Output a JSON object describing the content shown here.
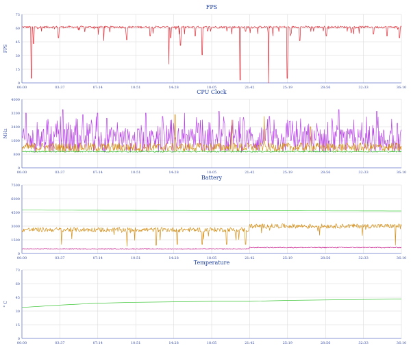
{
  "chart_data": [
    {
      "type": "line",
      "title": "FPS",
      "ylabel": "FPS",
      "ylim": [
        0,
        73
      ],
      "yticks": [
        "0",
        "15",
        "30",
        "45",
        "60",
        "73"
      ],
      "xticks": [
        "00:00",
        "03:37",
        "07:14",
        "10:51",
        "14:28",
        "18:05",
        "21:42",
        "25:19",
        "28:56",
        "32:33",
        "36:10"
      ],
      "xlim_minutes": [
        0,
        36.17
      ],
      "series": [
        {
          "color": "#e0303a",
          "baseline": 59.5,
          "noise": 1.2,
          "dips": [
            [
              0.9,
              5
            ],
            [
              1.1,
              42
            ],
            [
              3.5,
              48
            ],
            [
              7.8,
              45
            ],
            [
              10.0,
              46
            ],
            [
              12.2,
              50
            ],
            [
              14.0,
              20
            ],
            [
              14.2,
              48
            ],
            [
              15.1,
              40
            ],
            [
              15.5,
              52
            ],
            [
              16.5,
              50
            ],
            [
              17.2,
              30
            ],
            [
              18.0,
              55
            ],
            [
              20.0,
              52
            ],
            [
              20.8,
              3
            ],
            [
              21.3,
              55
            ],
            [
              23.5,
              0
            ],
            [
              23.9,
              50
            ],
            [
              25.3,
              5
            ],
            [
              25.6,
              50
            ],
            [
              26.5,
              45
            ],
            [
              27.8,
              55
            ],
            [
              29.0,
              50
            ],
            [
              31.0,
              55
            ],
            [
              33.5,
              52
            ],
            [
              34.8,
              50
            ],
            [
              36.0,
              48
            ]
          ]
        }
      ]
    },
    {
      "type": "line",
      "title": "CPU Clock",
      "ylabel": "MHz",
      "ylim": [
        0,
        4000
      ],
      "yticks": [
        "0",
        "800",
        "1600",
        "2400",
        "3200",
        "4000"
      ],
      "xticks": [
        "00:00",
        "03:37",
        "07:14",
        "10:51",
        "14:28",
        "18:05",
        "21:42",
        "25:19",
        "28:56",
        "32:33",
        "36:10"
      ],
      "xlim_minutes": [
        0,
        36.17
      ],
      "series": [
        {
          "color": "#b844e8",
          "baseline": 1600,
          "noise": 700,
          "peaks": [
            [
              0.4,
              3200
            ],
            [
              3.9,
              3400
            ],
            [
              5.8,
              3100
            ],
            [
              7.2,
              3200
            ],
            [
              8.1,
              2900
            ],
            [
              11.8,
              3200
            ],
            [
              13.4,
              3000
            ],
            [
              15.5,
              3200
            ],
            [
              18.8,
              3300
            ],
            [
              20.1,
              2800
            ],
            [
              23.6,
              3000
            ],
            [
              25.5,
              2700
            ],
            [
              30.2,
              3400
            ],
            [
              33.8,
              3300
            ],
            [
              35.8,
              2600
            ]
          ]
        },
        {
          "color": "#d48f1a",
          "baseline": 1200,
          "noise": 260,
          "peaks": [
            [
              14.6,
              3100
            ],
            [
              20.0,
              2800
            ],
            [
              23.1,
              3000
            ],
            [
              27.5,
              2400
            ]
          ]
        },
        {
          "color": "#22b51c",
          "baseline": 950,
          "noise": 40
        }
      ]
    },
    {
      "type": "line",
      "title": "Battery",
      "ylabel": "",
      "ylim": [
        0,
        7500
      ],
      "yticks": [
        "0",
        "1500",
        "3000",
        "4500",
        "6000",
        "7500"
      ],
      "xticks": [
        "00:00",
        "03:37",
        "07:14",
        "10:51",
        "14:28",
        "18:05",
        "21:42",
        "25:19",
        "28:56",
        "32:33",
        "36:10"
      ],
      "xlim_minutes": [
        0,
        36.17
      ],
      "series": [
        {
          "color": "#3fcf3c",
          "values_start_end": [
            4750,
            4650
          ]
        },
        {
          "color": "#d4901a",
          "baseline": 2600,
          "baseline_after_21_7": 3000,
          "noise": 250,
          "dips": [
            [
              3.8,
              1000
            ],
            [
              10.0,
              800
            ],
            [
              12.8,
              900
            ],
            [
              14.8,
              1000
            ],
            [
              17.2,
              1000
            ],
            [
              19.5,
              1000
            ],
            [
              21.3,
              1000
            ],
            [
              35.6,
              900
            ]
          ]
        },
        {
          "color": "#c8188a",
          "baseline": 500,
          "baseline_after_21_7": 650,
          "noise": 50
        }
      ]
    },
    {
      "type": "line",
      "title": "Temperature",
      "ylabel": "° C",
      "ylim": [
        0,
        73
      ],
      "yticks": [
        "0",
        "15",
        "30",
        "45",
        "60",
        "73"
      ],
      "xticks": [
        "00:00",
        "03:37",
        "07:14",
        "10:51",
        "14:28",
        "18:05",
        "21:42",
        "25:19",
        "28:56",
        "32:33",
        "36:10"
      ],
      "xlim_minutes": [
        0,
        36.17
      ],
      "series": [
        {
          "color": "#35c42e",
          "points": [
            [
              0,
              33
            ],
            [
              3.6,
              35.5
            ],
            [
              7.2,
              37.5
            ],
            [
              10.8,
              38.5
            ],
            [
              14.5,
              39
            ],
            [
              18.1,
              39.5
            ],
            [
              21.7,
              39.5
            ],
            [
              25.3,
              40.5
            ],
            [
              28.9,
              41
            ],
            [
              32.5,
              41.5
            ],
            [
              36.17,
              42
            ]
          ]
        }
      ]
    }
  ],
  "colors": {
    "axis": "#6b7bd0",
    "grid": "#d6d6d6",
    "title": "#1a3d9e"
  }
}
